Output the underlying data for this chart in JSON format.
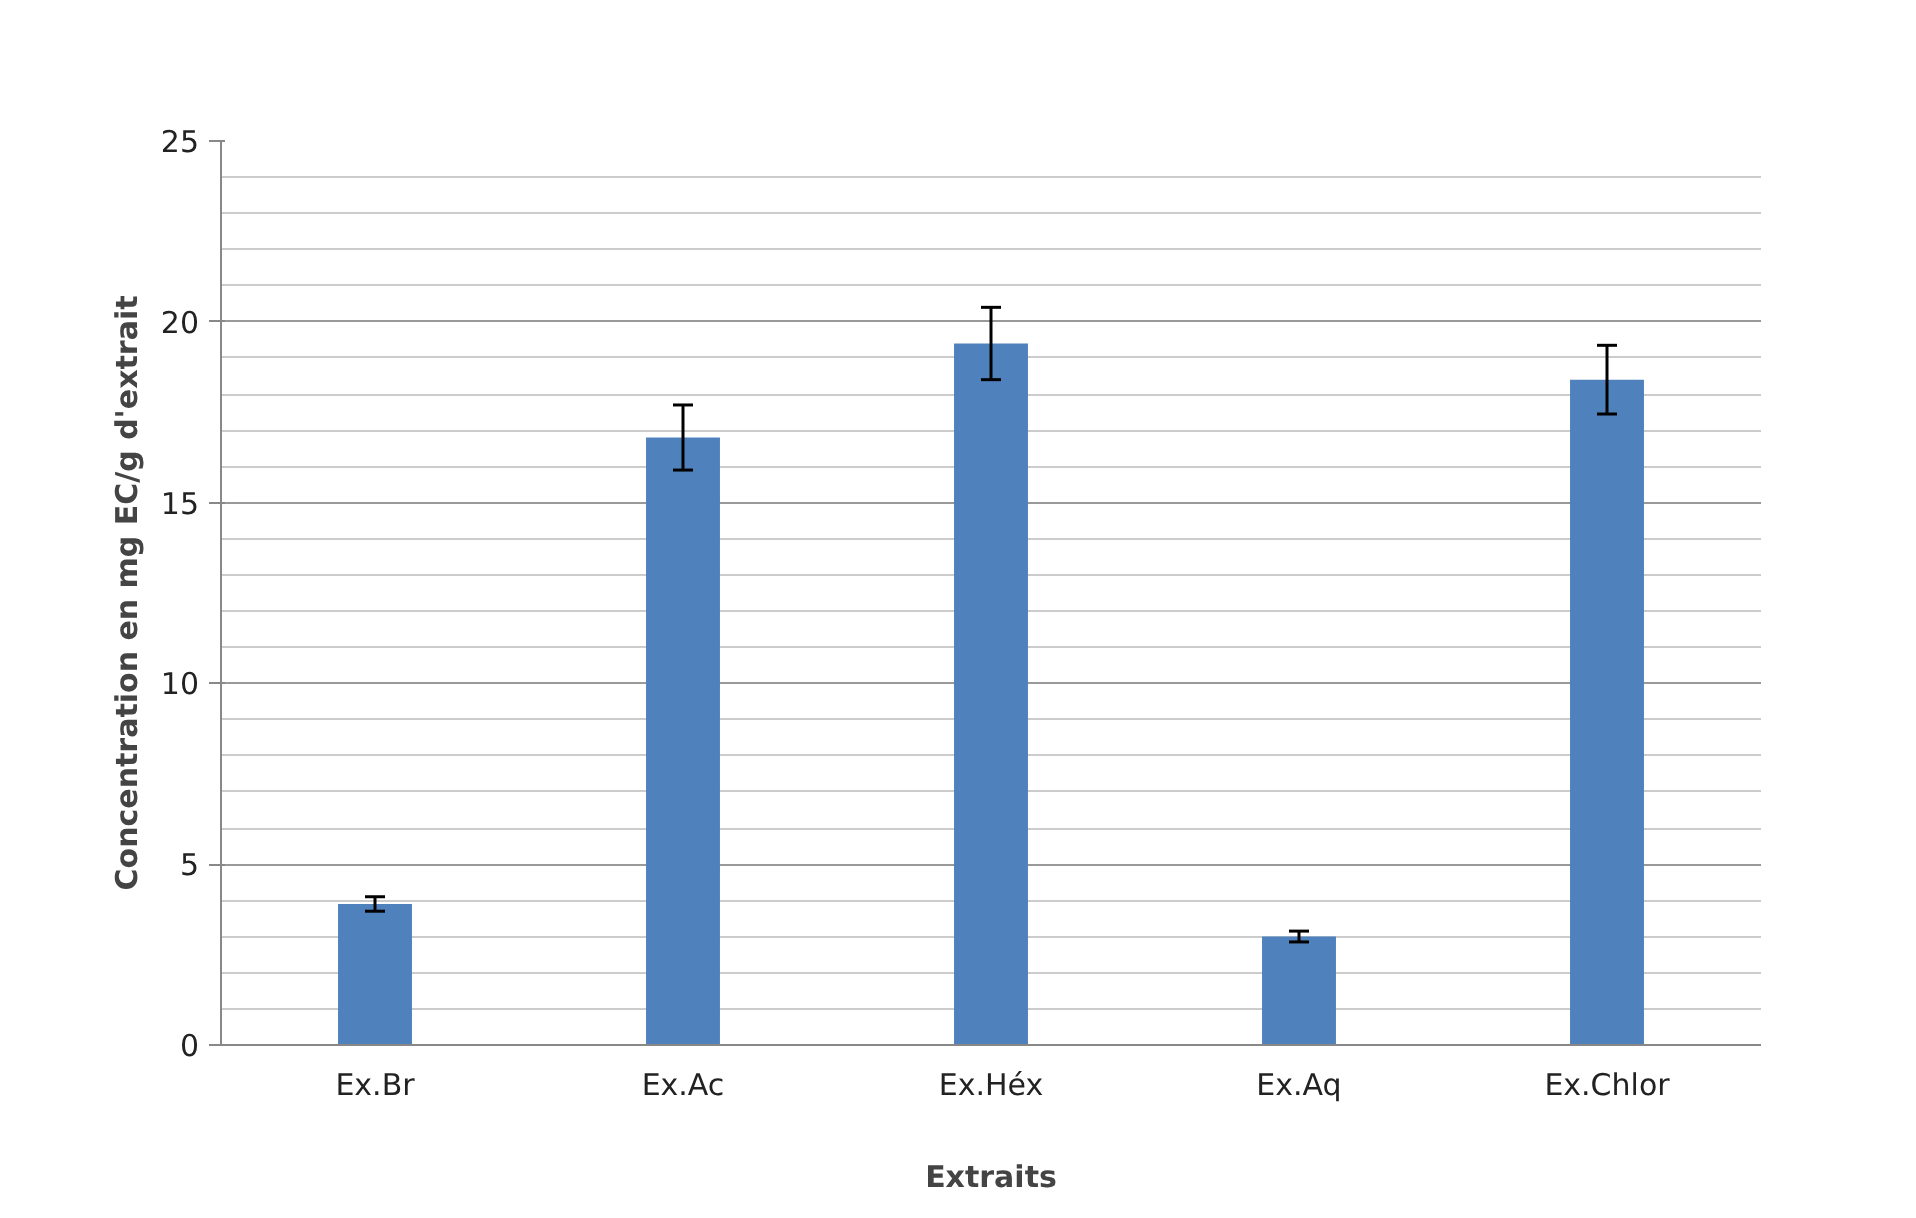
{
  "chart_data": {
    "type": "bar",
    "xlabel": "Extraits",
    "ylabel": "Concentration en mg EC/g d'extrait",
    "categories": [
      "Ex.Br",
      "Ex.Ac",
      "Ex.Héx",
      "Ex.Aq",
      "Ex.Chlor"
    ],
    "values": [
      3.9,
      16.8,
      19.4,
      3.0,
      18.4
    ],
    "errors": [
      0.2,
      0.9,
      1.0,
      0.15,
      0.95
    ],
    "color": "#4f81bd",
    "ylim": [
      0,
      25
    ],
    "yticks": [
      0,
      {
        "value": 1,
        "label": null
      },
      {
        "value": 2,
        "label": null
      },
      {
        "value": 3,
        "label": null
      },
      {
        "value": 4,
        "label": null
      },
      5,
      {
        "value": 6,
        "label": null
      },
      {
        "value": 7,
        "label": null
      },
      {
        "value": 8,
        "label": null
      },
      {
        "value": 9,
        "label": null
      },
      10,
      {
        "value": 11,
        "label": null
      },
      {
        "value": 12,
        "label": null
      },
      {
        "value": 13,
        "label": null
      },
      {
        "value": 14,
        "label": null
      },
      15,
      {
        "value": 16,
        "label": null
      },
      {
        "value": 17,
        "label": null
      },
      {
        "value": 18,
        "label": null
      },
      {
        "value": 19,
        "label": null
      },
      20,
      {
        "value": 21,
        "label": null
      },
      {
        "value": 22,
        "label": null
      },
      {
        "value": 23,
        "label": null
      },
      {
        "value": 24,
        "label": null
      },
      25
    ],
    "grid": "y"
  }
}
